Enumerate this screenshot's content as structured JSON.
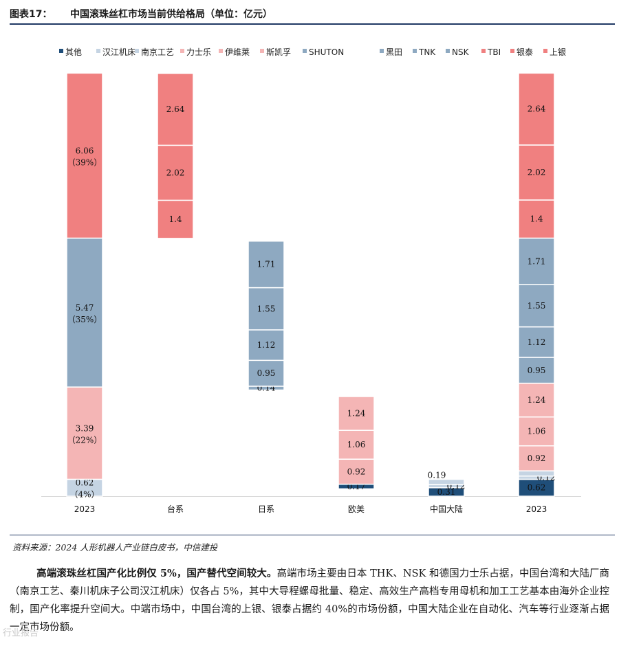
{
  "figure": {
    "number": "图表17：",
    "title": "中国滚珠丝杠市场当前供给格局（单位：亿元）"
  },
  "source": "资料来源：2024 人形机器人产业链白皮书，中信建投",
  "paragraph": {
    "bold": "高端滚珠丝杠国产化比例仅 5%，国产替代空间较大。",
    "text": "高端市场主要由日本 THK、NSK 和德国力士乐占据，中国台湾和大陆厂商（南京工艺、秦川机床子公司汉江机床）仅各占 5%，其中大导程螺母批量、稳定、高效生产高档专用母机和加工工艺基本由海外企业控制，国产化率提升空间大。中端市场中，中国台湾的上银、银泰占据约 40%的市场份额，中国大陆企业在自动化、汽车等行业逐渐占据一定市场份额。"
  },
  "watermark": "行业报告",
  "chart_data": {
    "type": "bar",
    "variant": "waterfall-stacked",
    "ylim": [
      0,
      15.5
    ],
    "legend": [
      {
        "name": "其他",
        "color": "#1f4e79"
      },
      {
        "name": "汉江机床",
        "color": "#c5d4e3"
      },
      {
        "name": "南京工艺",
        "color": "#c5d4e3"
      },
      {
        "name": "力士乐",
        "color": "#f4b5b5"
      },
      {
        "name": "伊维莱",
        "color": "#f4b5b5"
      },
      {
        "name": "斯凯孚",
        "color": "#f4b5b5"
      },
      {
        "name": "SHUTON",
        "color": "#8ea9c1"
      },
      {
        "name": "黑田",
        "color": "#8ea9c1"
      },
      {
        "name": "TNK",
        "color": "#8ea9c1"
      },
      {
        "name": "NSK",
        "color": "#8ea9c1"
      },
      {
        "name": "TBI",
        "color": "#f08080"
      },
      {
        "name": "银泰",
        "color": "#f08080"
      },
      {
        "name": "上银",
        "color": "#f08080"
      }
    ],
    "categories": [
      "2023",
      "台系",
      "日系",
      "欧美",
      "中国大陆",
      "2023"
    ],
    "bars": [
      {
        "category": "2023",
        "segments": [
          {
            "value": 0.62,
            "color": "#c5d4e3",
            "label": "0.62",
            "sublabel": "（4%）"
          },
          {
            "value": 3.39,
            "color": "#f4b5b5",
            "label": "3.39",
            "sublabel": "（22%）"
          },
          {
            "value": 5.47,
            "color": "#8ea9c1",
            "label": "5.47",
            "sublabel": "（35%）"
          },
          {
            "value": 6.06,
            "color": "#f08080",
            "label": "6.06",
            "sublabel": "（39%）"
          }
        ]
      },
      {
        "category": "台系",
        "segments": [
          {
            "value": 1.4,
            "color": "#f08080",
            "label": "1.4"
          },
          {
            "value": 2.02,
            "color": "#f08080",
            "label": "2.02"
          },
          {
            "value": 2.64,
            "color": "#f08080",
            "label": "2.64"
          }
        ]
      },
      {
        "category": "日系",
        "segments": [
          {
            "value": 0.14,
            "color": "#8ea9c1",
            "label": "0.14"
          },
          {
            "value": 0.95,
            "color": "#8ea9c1",
            "label": "0.95"
          },
          {
            "value": 1.12,
            "color": "#8ea9c1",
            "label": "1.12"
          },
          {
            "value": 1.55,
            "color": "#8ea9c1",
            "label": "1.55"
          },
          {
            "value": 1.71,
            "color": "#8ea9c1",
            "label": "1.71"
          }
        ]
      },
      {
        "category": "欧美",
        "segments": [
          {
            "value": 0.17,
            "color": "#1f4e79",
            "label": "0.17"
          },
          {
            "value": 0.92,
            "color": "#f4b5b5",
            "label": "0.92"
          },
          {
            "value": 1.06,
            "color": "#f4b5b5",
            "label": "1.06"
          },
          {
            "value": 1.24,
            "color": "#f4b5b5",
            "label": "1.24"
          }
        ]
      },
      {
        "category": "中国大陆",
        "segments": [
          {
            "value": 0.31,
            "color": "#1f4e79",
            "label": "0.31"
          },
          {
            "value": 0.12,
            "color": "#c5d4e3",
            "label": "0.12"
          },
          {
            "value": 0.19,
            "color": "#c5d4e3",
            "label": "0.19"
          }
        ]
      },
      {
        "category": "2023",
        "segments": [
          {
            "value": 0.62,
            "color": "#1f4e79",
            "label": "0.62"
          },
          {
            "value": 0.12,
            "color": "#c5d4e3",
            "label": "0.12"
          },
          {
            "value": 0.19,
            "color": "#c5d4e3",
            "label": "0.19"
          },
          {
            "value": 0.92,
            "color": "#f4b5b5",
            "label": "0.92"
          },
          {
            "value": 1.06,
            "color": "#f4b5b5",
            "label": "1.06"
          },
          {
            "value": 1.24,
            "color": "#f4b5b5",
            "label": "1.24"
          },
          {
            "value": 0.95,
            "color": "#8ea9c1",
            "label": "0.95"
          },
          {
            "value": 1.12,
            "color": "#8ea9c1",
            "label": "1.12"
          },
          {
            "value": 1.55,
            "color": "#8ea9c1",
            "label": "1.55"
          },
          {
            "value": 1.71,
            "color": "#8ea9c1",
            "label": "1.71"
          },
          {
            "value": 1.4,
            "color": "#f08080",
            "label": "1.4"
          },
          {
            "value": 2.02,
            "color": "#f08080",
            "label": "2.02"
          },
          {
            "value": 2.64,
            "color": "#f08080",
            "label": "2.64"
          }
        ]
      }
    ],
    "floating_offsets": [
      0,
      9.47,
      3.9,
      0.27,
      0,
      0
    ]
  }
}
